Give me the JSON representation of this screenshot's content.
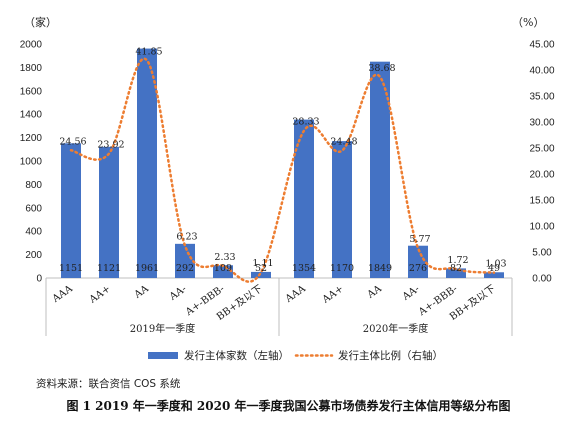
{
  "chart_data": {
    "type": "bar",
    "left_unit": "（家）",
    "right_unit": "（%）",
    "y_left": {
      "ticks": [
        0,
        200,
        400,
        600,
        800,
        1000,
        1200,
        1400,
        1600,
        1800,
        2000
      ],
      "range": [
        0,
        2000
      ]
    },
    "y_right": {
      "ticks": [
        "0.00",
        "5.00",
        "10.00",
        "15.00",
        "20.00",
        "25.00",
        "30.00",
        "35.00",
        "40.00",
        "45.00"
      ],
      "range": [
        0,
        45
      ]
    },
    "groups": [
      {
        "label": "2019年一季度",
        "categories": [
          "AAA",
          "AA+",
          "AA",
          "AA-",
          "A+-BBB-",
          "BB+及以下"
        ],
        "counts": [
          1151,
          1121,
          1961,
          292,
          109,
          52
        ],
        "ratios": [
          "24.56",
          "23.92",
          "41.85",
          "6.23",
          "2.33",
          "1.11"
        ]
      },
      {
        "label": "2020年一季度",
        "categories": [
          "AAA",
          "AA+",
          "AA",
          "AA-",
          "A+-BBB-",
          "BB+及以下"
        ],
        "counts": [
          1354,
          1170,
          1849,
          276,
          82,
          49
        ],
        "ratios": [
          "28.33",
          "24.48",
          "38.68",
          "5.77",
          "1.72",
          "1.03"
        ]
      }
    ],
    "series": [
      {
        "name": "发行主体家数（左轴）",
        "type": "bar",
        "axis": "left",
        "color": "#4472C4"
      },
      {
        "name": "发行主体比例（右轴）",
        "type": "line",
        "axis": "right",
        "color": "#ED7D31",
        "style": "dotted"
      }
    ],
    "grid": false,
    "legend_position": "bottom"
  },
  "source_text": "资料来源：联合资信 COS 系统",
  "caption_text": "图 1  2019 年一季度和 2020 年一季度我国公募市场债券发行主体信用等级分布图"
}
